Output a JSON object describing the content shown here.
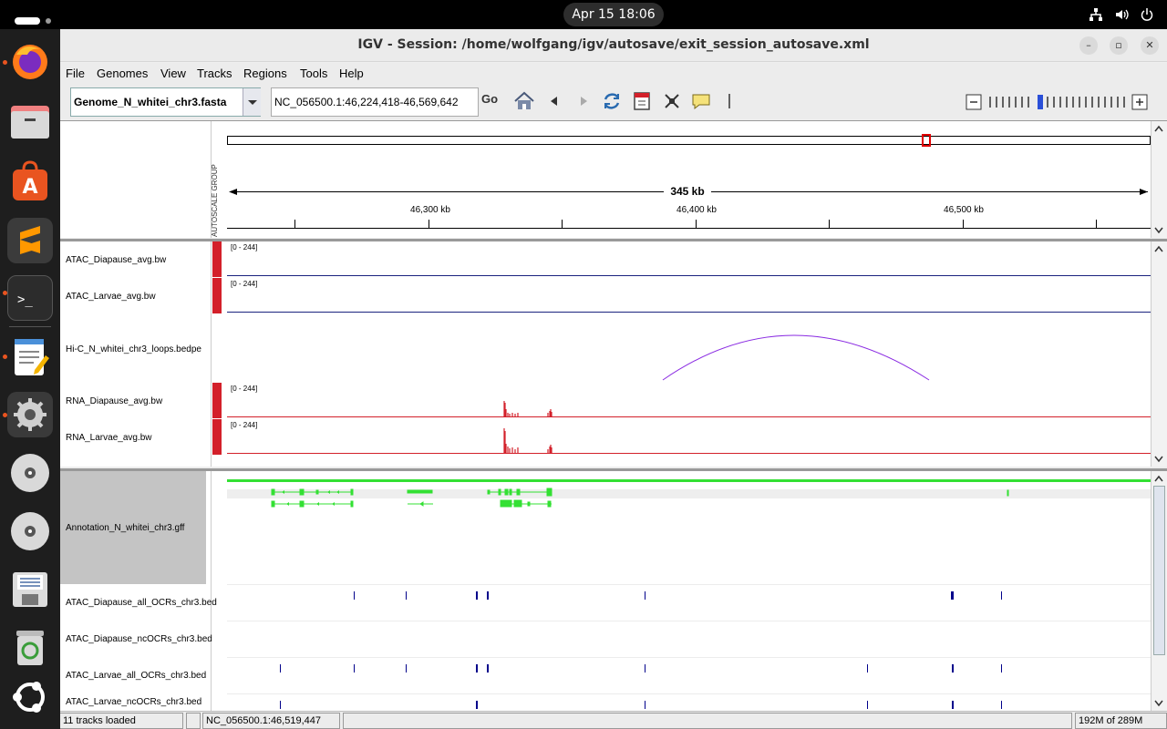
{
  "topbar": {
    "clock": "Apr 15  18:06"
  },
  "window": {
    "title": "IGV - Session: /home/wolfgang/igv/autosave/exit_session_autosave.xml",
    "min": "–",
    "max": "▫",
    "close": "✕"
  },
  "menu": {
    "file": "File",
    "genomes": "Genomes",
    "view": "View",
    "tracks": "Tracks",
    "regions": "Regions",
    "tools": "Tools",
    "help": "Help"
  },
  "toolbar": {
    "genome": "Genome_N_whitei_chr3.fasta",
    "locus": "NC_056500.1:46,224,418-46,569,642",
    "go": "Go"
  },
  "ruler": {
    "group_label": "AUTOSCALE GROUP",
    "span": "345 kb",
    "ticks": [
      "46,300 kb",
      "46,400 kb",
      "46,500 kb"
    ]
  },
  "tracks": [
    {
      "name": "ATAC_Diapause_avg.bw",
      "range": "[0 - 244]"
    },
    {
      "name": "ATAC_Larvae_avg.bw",
      "range": "[0 - 244]"
    },
    {
      "name": "Hi-C_N_whitei_chr3_loops.bedpe"
    },
    {
      "name": "RNA_Diapause_avg.bw",
      "range": "[0 - 244]"
    },
    {
      "name": "RNA_Larvae_avg.bw",
      "range": "[0 - 244]"
    }
  ],
  "feature_tracks": [
    {
      "name": "Annotation_N_whitei_chr3.gff"
    },
    {
      "name": "ATAC_Diapause_all_OCRs_chr3.bed"
    },
    {
      "name": "ATAC_Diapause_ncOCRs_chr3.bed"
    },
    {
      "name": "ATAC_Larvae_all_OCRs_chr3.bed"
    },
    {
      "name": "ATAC_Larvae_ncOCRs_chr3.bed"
    }
  ],
  "colors": {
    "signal": "#1a237e",
    "rna": "#d3202a",
    "gene": "#33e033",
    "loop": "#8a2be2",
    "bed": "#00008b"
  },
  "status": {
    "tracks_loaded": "11 tracks loaded",
    "position": "NC_056500.1:46,519,447",
    "memory": "192M of 289M"
  }
}
